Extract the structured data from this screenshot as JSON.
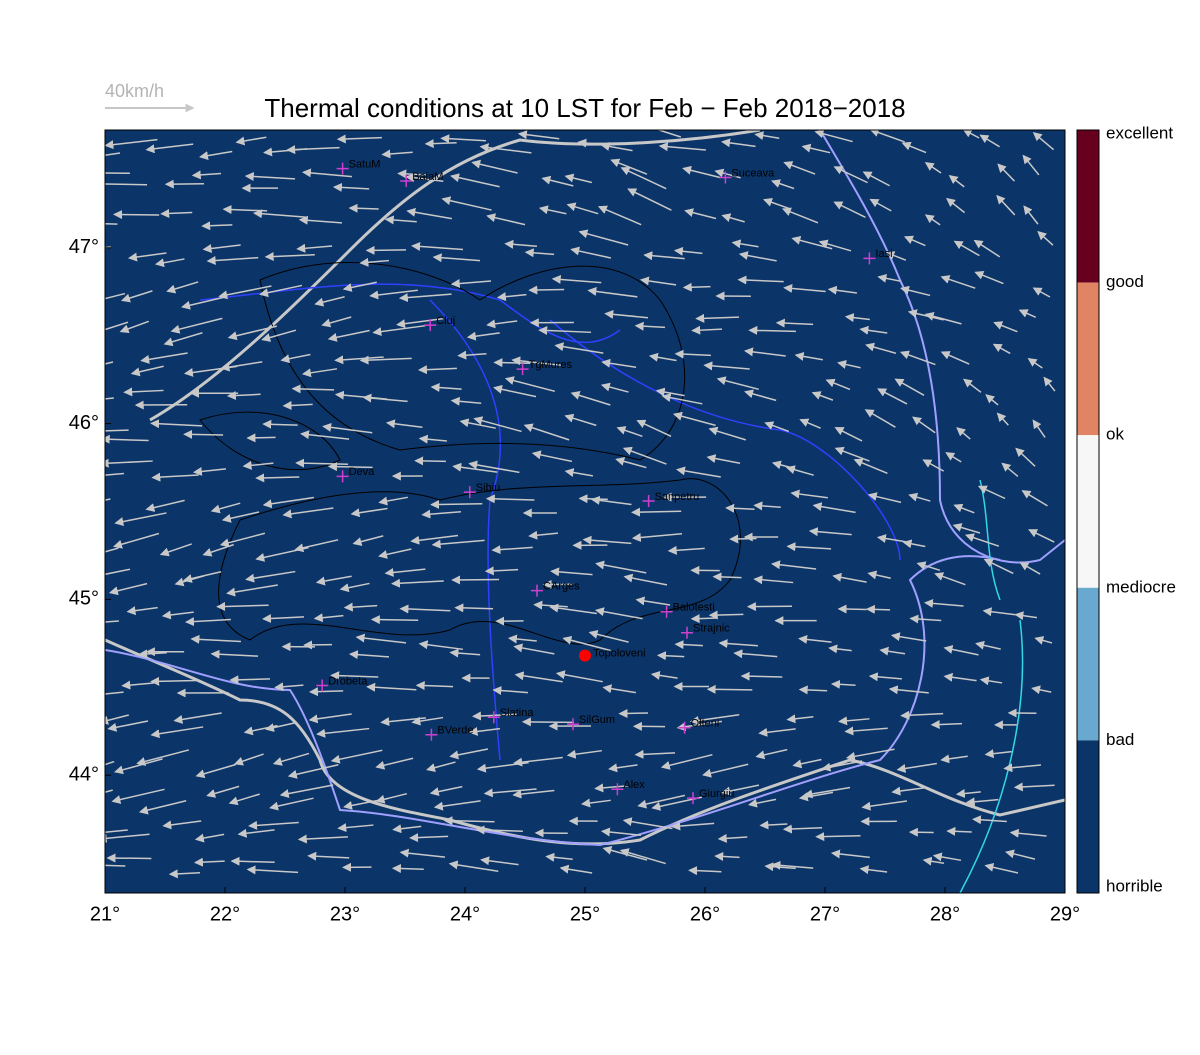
{
  "chart_data": {
    "type": "map",
    "title": "Thermal conditions at 10 LST for Feb − Feb  2018−2018",
    "scale_arrow_label": "40km/h",
    "background_color": "#0b3468",
    "xlim": [
      21,
      29
    ],
    "ylim": [
      43.33,
      47.67
    ],
    "xticks": [
      {
        "value": 21,
        "label": "21°"
      },
      {
        "value": 22,
        "label": "22°"
      },
      {
        "value": 23,
        "label": "23°"
      },
      {
        "value": 24,
        "label": "24°"
      },
      {
        "value": 25,
        "label": "25°"
      },
      {
        "value": 26,
        "label": "26°"
      },
      {
        "value": 27,
        "label": "27°"
      },
      {
        "value": 28,
        "label": "28°"
      },
      {
        "value": 29,
        "label": "29°"
      }
    ],
    "yticks": [
      {
        "value": 44,
        "label": "44°"
      },
      {
        "value": 45,
        "label": "45°"
      },
      {
        "value": 46,
        "label": "46°"
      },
      {
        "value": 47,
        "label": "47°"
      }
    ],
    "colorbar": {
      "labels": [
        "excellent",
        "good",
        "ok",
        "mediocre",
        "bad",
        "horrible"
      ],
      "colors": [
        "#67001f",
        "#e08464",
        "#f7f7f7",
        "#6aa9cf",
        "#0b3468"
      ]
    },
    "cities": [
      {
        "name": "SatuM",
        "lon": 22.98,
        "lat": 47.45
      },
      {
        "name": "BaiaM",
        "lon": 23.51,
        "lat": 47.38
      },
      {
        "name": "Suceava",
        "lon": 26.17,
        "lat": 47.4
      },
      {
        "name": "Iasi",
        "lon": 27.37,
        "lat": 46.94
      },
      {
        "name": "Cluj",
        "lon": 23.71,
        "lat": 46.56
      },
      {
        "name": "TgMures",
        "lon": 24.48,
        "lat": 46.31
      },
      {
        "name": "Deva",
        "lon": 22.98,
        "lat": 45.7
      },
      {
        "name": "Sibiu",
        "lon": 24.04,
        "lat": 45.61
      },
      {
        "name": "Sanpetru",
        "lon": 25.53,
        "lat": 45.56
      },
      {
        "name": "CArges",
        "lon": 24.6,
        "lat": 45.05
      },
      {
        "name": "Balotesti",
        "lon": 25.68,
        "lat": 44.93
      },
      {
        "name": "Strajnic",
        "lon": 25.85,
        "lat": 44.81
      },
      {
        "name": "Drobeta",
        "lon": 22.81,
        "lat": 44.51
      },
      {
        "name": "Slatina",
        "lon": 24.24,
        "lat": 44.33
      },
      {
        "name": "SilGum",
        "lon": 24.9,
        "lat": 44.29
      },
      {
        "name": "Olteni",
        "lon": 25.83,
        "lat": 44.27
      },
      {
        "name": "BVerde",
        "lon": 23.72,
        "lat": 44.23
      },
      {
        "name": "Alex",
        "lon": 25.27,
        "lat": 43.92
      },
      {
        "name": "Giurgiu",
        "lon": 25.9,
        "lat": 43.87
      }
    ],
    "highlight": {
      "name": "Topoloveni",
      "lon": 25.0,
      "lat": 44.68,
      "color": "#ff0000"
    }
  }
}
